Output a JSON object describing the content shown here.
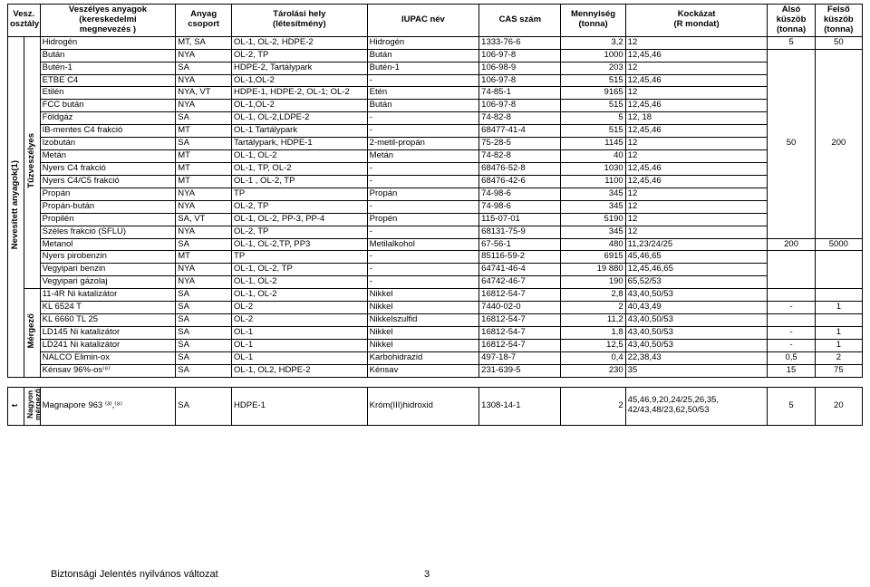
{
  "columns": {
    "c0": "Vesz.\nosztály",
    "c1": "Veszélyes anyagok\n(kereskedelmi\nmegnevezés )",
    "c2": "Anyag\ncsoport",
    "c3": "Tárolási hely\n(létesítmény)",
    "c4": "IUPAC név",
    "c5": "CAS szám",
    "c6": "Mennyiség\n(tonna)",
    "c7": "Kockázat\n(R mondat)",
    "c8": "Alsó\nküszöb\n(tonna)",
    "c9": "Felső\nküszöb\n(tonna)"
  },
  "vlabels": {
    "nev": "Nevesített anyagok",
    "nev_sup": "(1)",
    "tuz": "Tűzveszélyes",
    "mer": "Mérgező",
    "t": "t",
    "nagyon": "Nagyon\nmérgező"
  },
  "group1": {
    "also": "5",
    "felso": "50"
  },
  "group2": {
    "also": "50",
    "felso": "200"
  },
  "group3": {
    "also": "200",
    "felso": "5000"
  },
  "rows": [
    {
      "a": "Hidrogén",
      "b": "MT, SA",
      "c": "OL-1, OL-2, HDPE-2",
      "d": "Hidrogén",
      "e": "1333-76-6",
      "f": "3,2",
      "g": "12"
    },
    {
      "a": "Bután",
      "b": "NYA",
      "c": "OL-2, TP",
      "d": "Bután",
      "e": "106-97-8",
      "f": "1000",
      "g": "12,45,46"
    },
    {
      "a": "Butén-1",
      "b": "SA",
      "c": "HDPE-2, Tartálypark",
      "d": "Butén-1",
      "e": "106-98-9",
      "f": "203",
      "g": "12"
    },
    {
      "a": "ETBE C4",
      "b": "NYA",
      "c": "OL-1,OL-2",
      "d": "-",
      "e": "106-97-8",
      "f": "515",
      "g": "12,45,46"
    },
    {
      "a": "Etilén",
      "b": "NYA, VT",
      "c": "HDPE-1, HDPE-2, OL-1; OL-2",
      "d": "Etén",
      "e": "74-85-1",
      "f": "9165",
      "g": "12"
    },
    {
      "a": "FCC bután",
      "b": "NYA",
      "c": "OL-1,OL-2",
      "d": "Bután",
      "e": "106-97-8",
      "f": "515",
      "g": "12,45,46"
    },
    {
      "a": "Földgáz",
      "b": "SA",
      "c": "OL-1, OL-2,LDPE-2",
      "d": "-",
      "e": "74-82-8",
      "f": "5",
      "g": "12, 18"
    },
    {
      "a": "IB-mentes C4 frakció",
      "b": "MT",
      "c": "OL-1 Tartálypark",
      "d": "-",
      "e": "68477-41-4",
      "f": "515",
      "g": "12,45,46"
    },
    {
      "a": "Izobután",
      "b": "SA",
      "c": "Tartálypark, HDPE-1",
      "d": "2-metil-propán",
      "e": "75-28-5",
      "f": "1145",
      "g": "12"
    },
    {
      "a": "Metán",
      "b": "MT",
      "c": "OL-1, OL-2",
      "d": "Metán",
      "e": "74-82-8",
      "f": "40",
      "g": "12"
    },
    {
      "a": "Nyers C4 frakció",
      "b": "MT",
      "c": "OL-1, TP, OL-2",
      "d": "-",
      "e": "68476-52-8",
      "f": "1030",
      "g": "12,45,46"
    },
    {
      "a": "Nyers C4/C5 frakció",
      "b": "MT",
      "c": "OL-1 , OL-2, TP",
      "d": "-",
      "e": "68476-42-6",
      "f": "1100",
      "g": "12,45,46"
    },
    {
      "a": "Propán",
      "b": "NYA",
      "c": "TP",
      "d": "Propán",
      "e": "74-98-6",
      "f": "345",
      "g": "12"
    },
    {
      "a": "Propán-bután",
      "b": "NYA",
      "c": "OL-2, TP",
      "d": "-",
      "e": "74-98-6",
      "f": "345",
      "g": "12"
    },
    {
      "a": "Propilén",
      "b": "SA, VT",
      "c": "OL-1, OL-2, PP-3, PP-4",
      "d": "Propén",
      "e": "115-07-01",
      "f": "5190",
      "g": "12"
    },
    {
      "a": "Széles frakció (SFLU)",
      "b": "NYA",
      "c": "OL-2, TP",
      "d": "-",
      "e": "68131-75-9",
      "f": "345",
      "g": "12"
    },
    {
      "a": "Metanol",
      "b": "SA",
      "c": "OL-1, OL-2,TP, PP3",
      "d": "Metilalkohol",
      "e": "67-56-1",
      "f": "480",
      "g": "11,23/24/25"
    },
    {
      "a": "Nyers pirobenzin",
      "b": "MT",
      "c": "TP",
      "d": "-",
      "e": "85116-59-2",
      "f": "6915",
      "g": "45,46,65"
    },
    {
      "a": "Vegyipari benzin",
      "b": "NYA",
      "c": "OL-1, OL-2, TP",
      "d": "-",
      "e": "64741-46-4",
      "f": "19 880",
      "g": "12,45,46,65"
    },
    {
      "a": "Vegyipari gázolaj",
      "b": "NYA",
      "c": "OL-1, OL-2",
      "d": "-",
      "e": "64742-46-7",
      "f": "190",
      "g": "65,52/53"
    }
  ],
  "rowsM": [
    {
      "a": "11-4R Ni katalizátor",
      "b": "SA",
      "c": "OL-1, OL-2",
      "d": "Nikkel",
      "e": "16812-54-7",
      "f": "2,8",
      "g": "43,40,50/53",
      "h": "",
      "i": ""
    },
    {
      "a": "KL 6524 T",
      "b": "SA",
      "c": "OL-2",
      "d": "Nikkel",
      "e": "7440-02-0",
      "f": "2",
      "g": "40,43,49",
      "h": "-",
      "i": "1"
    },
    {
      "a": "KL 6660 TL 25",
      "b": "SA",
      "c": "OL-2",
      "d": "Nikkelszulfid",
      "e": "16812-54-7",
      "f": "11,2",
      "g": "43,40,50/53",
      "h": "",
      "i": ""
    },
    {
      "a": "LD145 Ni katalizátor",
      "b": "SA",
      "c": "OL-1",
      "d": "Nikkel",
      "e": "16812-54-7",
      "f": "1,8",
      "g": "43,40,50/53",
      "h": "-",
      "i": "1"
    },
    {
      "a": "LD241 Ni katalizátor",
      "b": "SA",
      "c": "OL-1",
      "d": "Nikkel",
      "e": "16812-54-7",
      "f": "12,5",
      "g": "43,40,50/53",
      "h": "-",
      "i": "1"
    },
    {
      "a": "NALCO Elimin-ox",
      "b": "SA",
      "c": "OL-1",
      "d": "Karbohidrazid",
      "e": "497-18-7",
      "f": "0,4",
      "g": "22,38,43",
      "h": "0,5",
      "i": "2"
    },
    {
      "a": "Kénsav 96%-os⁽⁶⁾",
      "b": "SA",
      "c": "OL-1, OL2, HDPE-2",
      "d": "Kénsav",
      "e": "231-639-5",
      "f": "230",
      "g": "35",
      "h": "15",
      "i": "75"
    }
  ],
  "rowN": {
    "a": "Magnapore 963 ⁽³⁾,⁽⁸⁾",
    "b": "SA",
    "c": "HDPE-1",
    "d": "Króm(III)hidroxid",
    "e": "1308-14-1",
    "f": "2",
    "g": "45,46,9,20,24/25,26,35,\n42/43,48/23,62,50/53",
    "h": "5",
    "i": "20"
  },
  "footer": "Biztonsági Jelentés nyilvános változat",
  "pagenum": "3",
  "colwidths": {
    "w0": 15,
    "w0b": 15,
    "w1": 126,
    "w2": 52,
    "w3": 126,
    "w4": 104,
    "w5": 76,
    "w6": 60,
    "w7": 132,
    "w8": 44,
    "w9": 44
  }
}
